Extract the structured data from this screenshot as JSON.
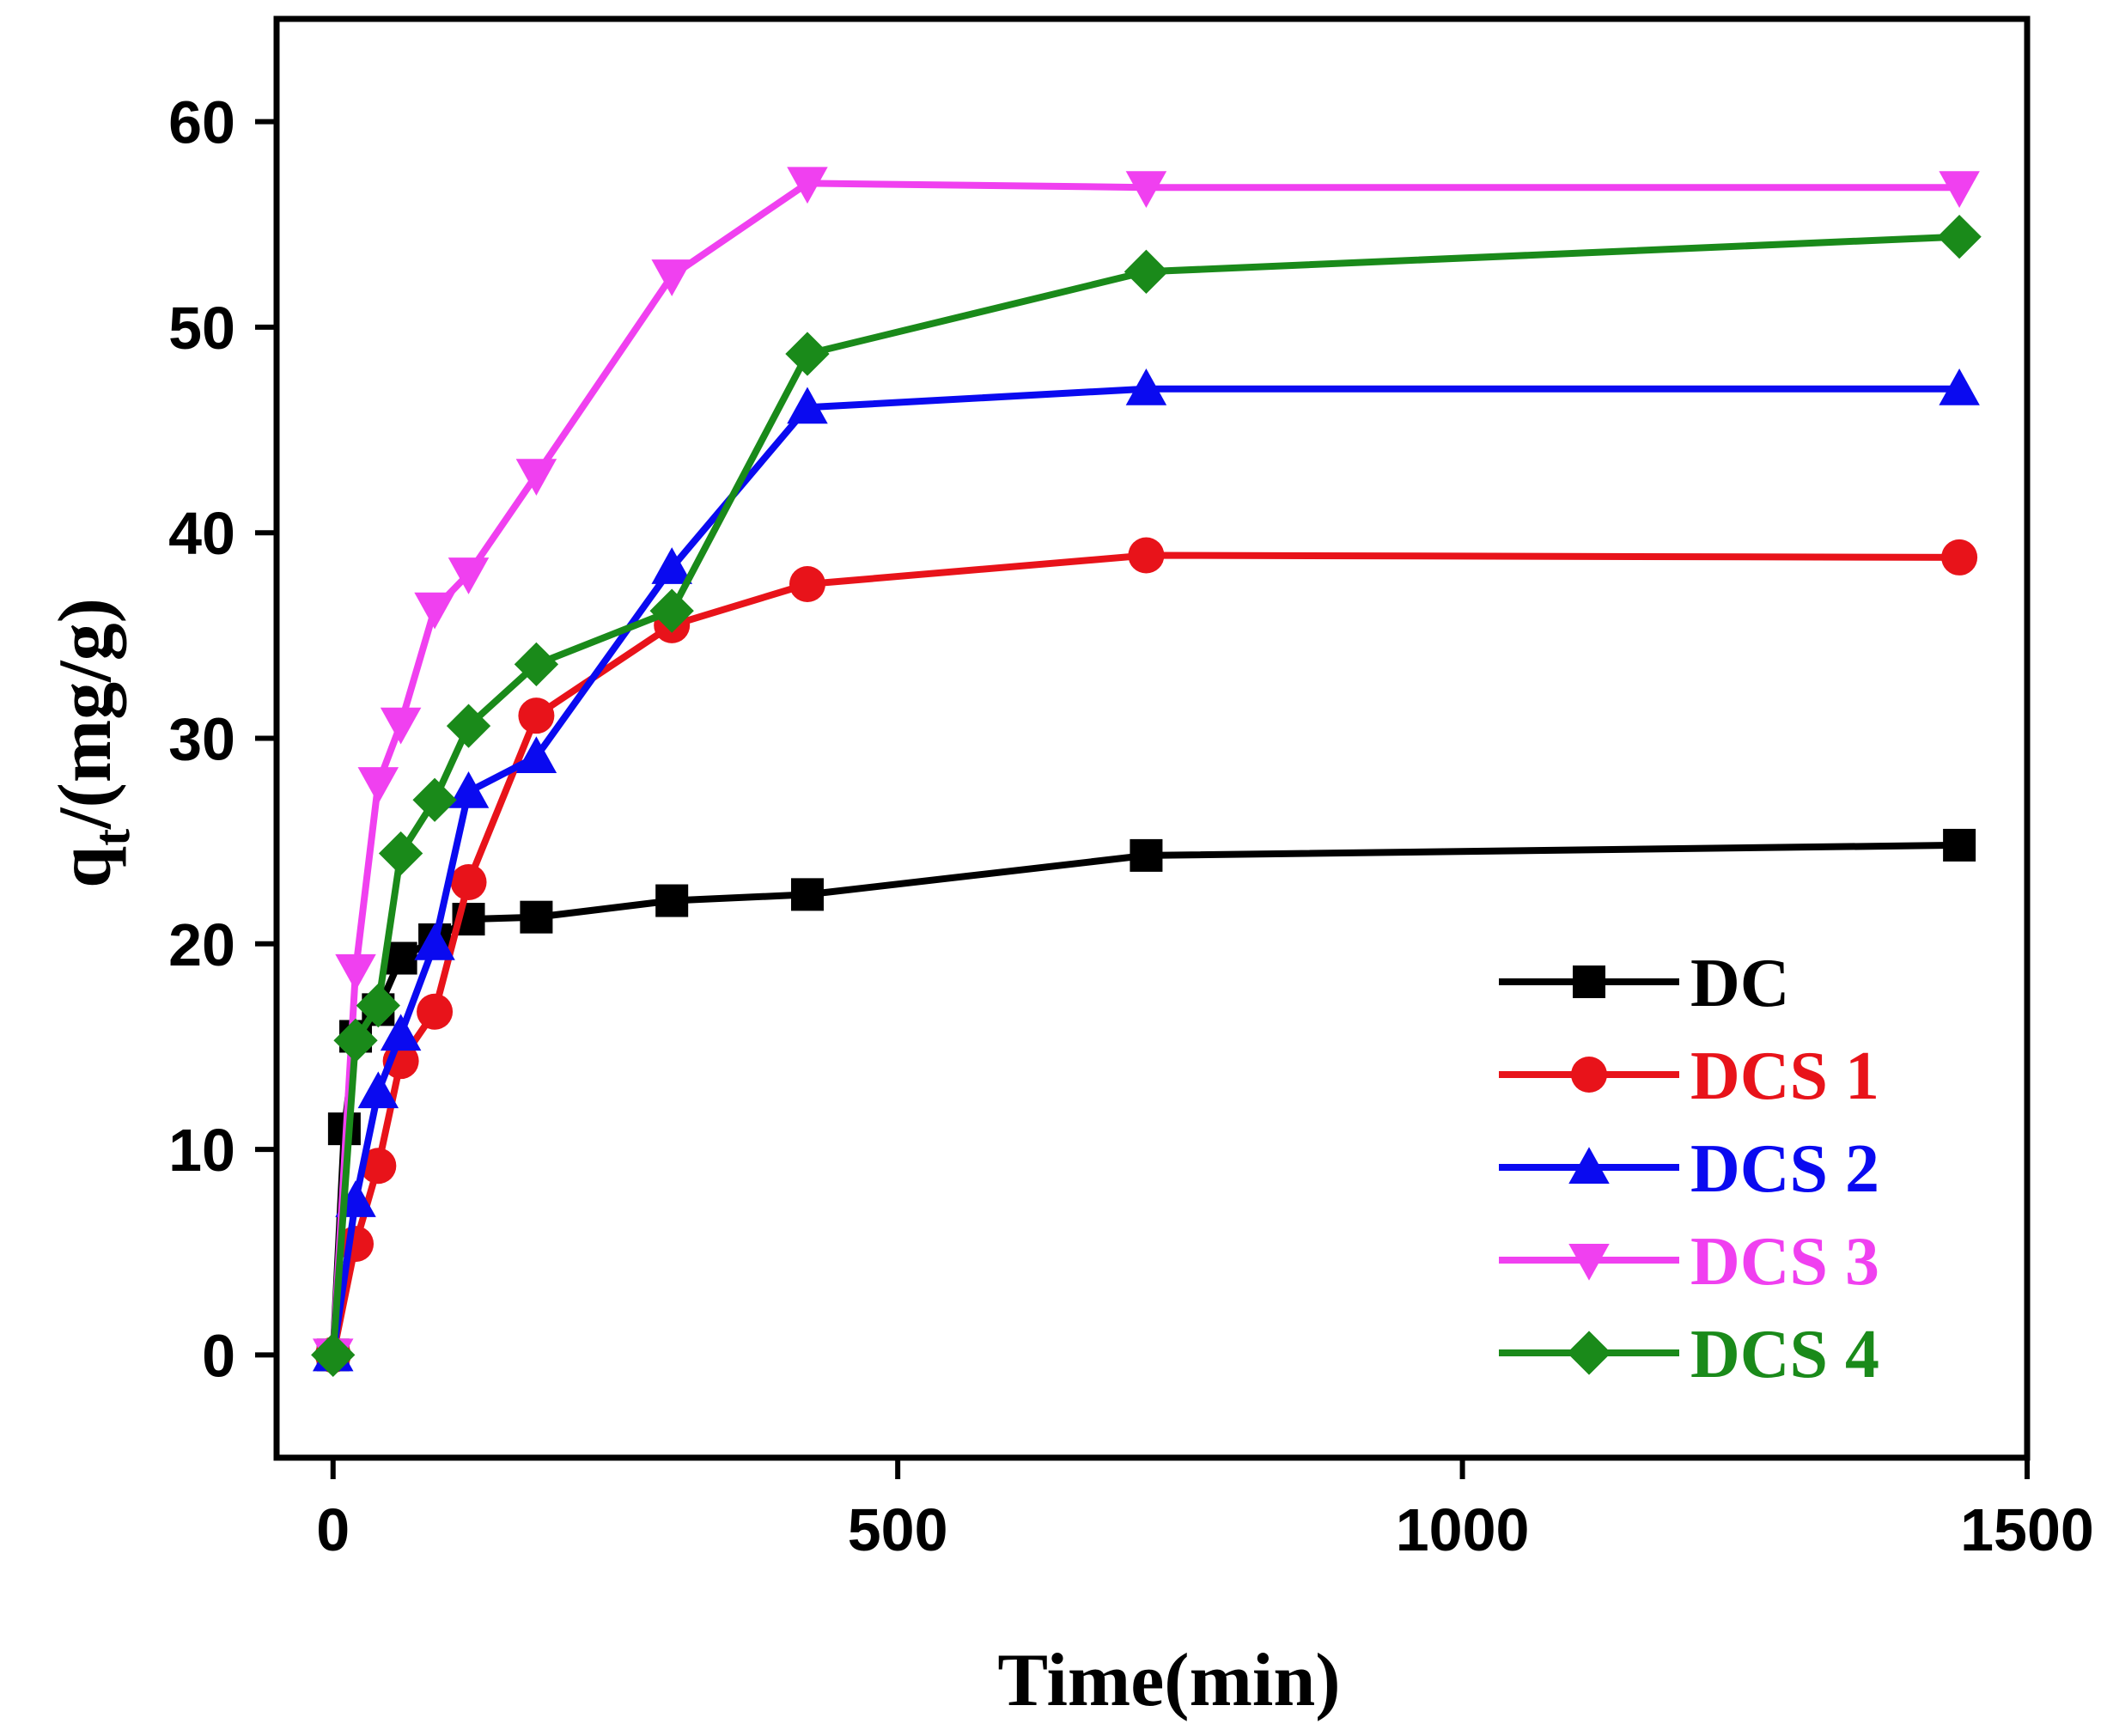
{
  "chart_data": {
    "type": "line",
    "title": "",
    "xlabel": "Time(min)",
    "ylabel_main": "q",
    "ylabel_sub": "t",
    "ylabel_rest": "/(mg/g)",
    "xlim": [
      -50,
      1500
    ],
    "ylim": [
      -5,
      65
    ],
    "xticks": [
      0,
      500,
      1000,
      1500
    ],
    "yticks": [
      0,
      10,
      20,
      30,
      40,
      50,
      60
    ],
    "grid": false,
    "legend_position": "bottom-right",
    "series": [
      {
        "name": "DC",
        "color": "#000000",
        "marker": "square",
        "x": [
          0,
          10,
          20,
          40,
          60,
          90,
          120,
          180,
          300,
          420,
          720,
          1440
        ],
        "y": [
          0,
          11,
          15.5,
          16.8,
          19.3,
          20.2,
          21.2,
          21.3,
          22.1,
          22.4,
          24.3,
          24.8
        ]
      },
      {
        "name": "DCS 1",
        "color": "#e8131a",
        "marker": "circle",
        "x": [
          0,
          20,
          40,
          60,
          90,
          120,
          180,
          300,
          420,
          720,
          1440
        ],
        "y": [
          0,
          5.4,
          9.2,
          14.3,
          16.7,
          23.0,
          31.1,
          35.5,
          37.5,
          38.9,
          38.8
        ]
      },
      {
        "name": "DCS 2",
        "color": "#0a0af0",
        "marker": "triangle-up",
        "x": [
          0,
          20,
          40,
          60,
          90,
          120,
          180,
          300,
          420,
          720,
          1440
        ],
        "y": [
          0,
          7.5,
          12.8,
          15.6,
          20.0,
          27.4,
          29.1,
          38.3,
          46.1,
          47.0,
          47.0
        ]
      },
      {
        "name": "DCS 3",
        "color": "#f040f0",
        "marker": "triangle-down",
        "x": [
          0,
          20,
          40,
          60,
          90,
          120,
          180,
          300,
          420,
          720,
          1440
        ],
        "y": [
          0,
          18.7,
          27.8,
          30.7,
          36.3,
          38.0,
          42.8,
          52.5,
          57.0,
          56.8,
          56.8
        ]
      },
      {
        "name": "DCS 4",
        "color": "#1a8a1a",
        "marker": "diamond",
        "x": [
          0,
          20,
          40,
          60,
          90,
          120,
          180,
          300,
          420,
          720,
          1440
        ],
        "y": [
          0,
          15.3,
          17.0,
          24.4,
          27.0,
          30.6,
          33.6,
          36.2,
          48.7,
          52.7,
          54.4
        ]
      }
    ]
  }
}
